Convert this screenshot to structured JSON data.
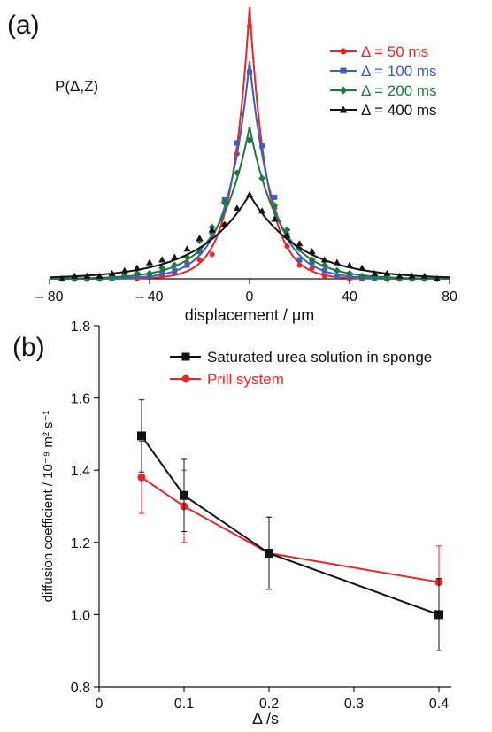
{
  "panels": {
    "a_label": "(a)",
    "b_label": "(b)"
  },
  "chart_data": [
    {
      "type": "line",
      "panel": "(a)",
      "annotation": "P(Δ,Z)",
      "xlabel": "displacement / μm",
      "ylabel": "",
      "xlim": [
        -80,
        80
      ],
      "ylim": [
        0,
        1.0
      ],
      "x_ticks": [
        -80,
        -40,
        0,
        40,
        80
      ],
      "x_tick_labels": [
        "– 80",
        "– 40",
        "0",
        "40",
        "80"
      ],
      "grid": false,
      "legend_position": "top-right",
      "series": [
        {
          "name": "Δ = 50 ms",
          "color": "#e8262b",
          "marker": "circle",
          "fit_peak": 1.0,
          "fit_decay": 7,
          "points": [
            [
              -75,
              0.0
            ],
            [
              -70,
              0.0
            ],
            [
              -65,
              0.0
            ],
            [
              -60,
              0.0
            ],
            [
              -55,
              0.0
            ],
            [
              -50,
              0.01
            ],
            [
              -45,
              0.0
            ],
            [
              -40,
              0.01
            ],
            [
              -35,
              0.01
            ],
            [
              -30,
              0.02
            ],
            [
              -25,
              0.06
            ],
            [
              -20,
              0.07
            ],
            [
              -15,
              0.09
            ],
            [
              -10,
              0.2
            ],
            [
              -5,
              0.46
            ],
            [
              0,
              0.93
            ],
            [
              5,
              0.49
            ],
            [
              10,
              0.26
            ],
            [
              15,
              0.12
            ],
            [
              20,
              0.05
            ],
            [
              25,
              0.04
            ],
            [
              30,
              0.01
            ],
            [
              35,
              0.01
            ],
            [
              40,
              0.0
            ],
            [
              45,
              0.0
            ],
            [
              50,
              0.0
            ],
            [
              55,
              0.0
            ],
            [
              60,
              0.0
            ],
            [
              65,
              0.0
            ],
            [
              70,
              0.0
            ],
            [
              75,
              0.0
            ]
          ]
        },
        {
          "name": "Δ = 100 ms",
          "color": "#3b5fc4",
          "marker": "square",
          "fit_peak": 0.8,
          "fit_decay": 9,
          "points": [
            [
              -75,
              0.0
            ],
            [
              -70,
              0.0
            ],
            [
              -65,
              0.0
            ],
            [
              -60,
              0.0
            ],
            [
              -55,
              0.0
            ],
            [
              -50,
              0.01
            ],
            [
              -45,
              0.01
            ],
            [
              -40,
              0.01
            ],
            [
              -35,
              0.02
            ],
            [
              -30,
              0.03
            ],
            [
              -25,
              0.05
            ],
            [
              -20,
              0.1
            ],
            [
              -15,
              0.17
            ],
            [
              -10,
              0.29
            ],
            [
              -5,
              0.5
            ],
            [
              0,
              0.76
            ],
            [
              5,
              0.49
            ],
            [
              10,
              0.3
            ],
            [
              15,
              0.16
            ],
            [
              20,
              0.07
            ],
            [
              25,
              0.06
            ],
            [
              30,
              0.03
            ],
            [
              35,
              0.01
            ],
            [
              40,
              0.01
            ],
            [
              45,
              0.0
            ],
            [
              50,
              0.0
            ],
            [
              55,
              0.0
            ],
            [
              60,
              0.0
            ],
            [
              65,
              0.0
            ],
            [
              70,
              0.0
            ],
            [
              75,
              0.0
            ]
          ]
        },
        {
          "name": "Δ = 200 ms",
          "color": "#1f7a3a",
          "marker": "diamond",
          "fit_peak": 0.56,
          "fit_decay": 12,
          "points": [
            [
              -75,
              0.0
            ],
            [
              -70,
              0.0
            ],
            [
              -65,
              0.0
            ],
            [
              -60,
              0.0
            ],
            [
              -55,
              0.01
            ],
            [
              -50,
              0.01
            ],
            [
              -45,
              0.02
            ],
            [
              -40,
              0.02
            ],
            [
              -35,
              0.04
            ],
            [
              -30,
              0.05
            ],
            [
              -25,
              0.08
            ],
            [
              -20,
              0.14
            ],
            [
              -15,
              0.19
            ],
            [
              -10,
              0.28
            ],
            [
              -5,
              0.39
            ],
            [
              0,
              0.51
            ],
            [
              5,
              0.37
            ],
            [
              10,
              0.27
            ],
            [
              15,
              0.18
            ],
            [
              20,
              0.11
            ],
            [
              25,
              0.07
            ],
            [
              30,
              0.05
            ],
            [
              35,
              0.03
            ],
            [
              40,
              0.02
            ],
            [
              45,
              0.01
            ],
            [
              50,
              0.01
            ],
            [
              55,
              0.0
            ],
            [
              60,
              0.0
            ],
            [
              65,
              0.0
            ],
            [
              70,
              0.0
            ],
            [
              75,
              0.0
            ]
          ]
        },
        {
          "name": "Δ = 400 ms",
          "color": "#111111",
          "marker": "triangle",
          "fit_peak": 0.31,
          "fit_decay": 20,
          "points": [
            [
              -75,
              0.0
            ],
            [
              -70,
              0.01
            ],
            [
              -65,
              0.01
            ],
            [
              -60,
              0.01
            ],
            [
              -55,
              0.02
            ],
            [
              -50,
              0.03
            ],
            [
              -45,
              0.04
            ],
            [
              -40,
              0.06
            ],
            [
              -35,
              0.07
            ],
            [
              -30,
              0.08
            ],
            [
              -25,
              0.11
            ],
            [
              -20,
              0.15
            ],
            [
              -15,
              0.18
            ],
            [
              -10,
              0.2
            ],
            [
              -5,
              0.26
            ],
            [
              0,
              0.31
            ],
            [
              5,
              0.25
            ],
            [
              10,
              0.22
            ],
            [
              15,
              0.16
            ],
            [
              20,
              0.13
            ],
            [
              25,
              0.1
            ],
            [
              30,
              0.07
            ],
            [
              35,
              0.06
            ],
            [
              40,
              0.05
            ],
            [
              45,
              0.04
            ],
            [
              50,
              0.02
            ],
            [
              55,
              0.02
            ],
            [
              60,
              0.01
            ],
            [
              65,
              0.01
            ],
            [
              70,
              0.01
            ],
            [
              75,
              0.0
            ]
          ]
        }
      ]
    },
    {
      "type": "line",
      "panel": "(b)",
      "xlabel": "Δ /s",
      "ylabel": "diffusion coefficient / 10⁻⁹ m² s⁻¹",
      "xlim": [
        0,
        0.4
      ],
      "ylim": [
        0.8,
        1.8
      ],
      "x_ticks": [
        0,
        0.1,
        0.2,
        0.3,
        0.4
      ],
      "x_tick_labels": [
        "0",
        "0.1",
        "0.2",
        "0.3",
        "0.4"
      ],
      "y_ticks": [
        0.8,
        1.0,
        1.2,
        1.4,
        1.6,
        1.8
      ],
      "y_tick_labels": [
        "0.8",
        "1.0",
        "1.2",
        "1.4",
        "1.6",
        "1.8"
      ],
      "grid": false,
      "legend_position": "top-right",
      "series": [
        {
          "name": "Saturated urea solution in sponge",
          "color": "#111111",
          "marker": "square",
          "x": [
            0.05,
            0.1,
            0.2,
            0.4
          ],
          "y": [
            1.495,
            1.33,
            1.17,
            1.0
          ],
          "err": [
            0.1,
            0.1,
            0.1,
            0.1
          ]
        },
        {
          "name": "Prill system",
          "color": "#e8262b",
          "marker": "circle",
          "x": [
            0.05,
            0.1,
            0.2,
            0.4
          ],
          "y": [
            1.38,
            1.3,
            1.17,
            1.09
          ],
          "err": [
            0.1,
            0.1,
            0.1,
            0.1
          ]
        }
      ]
    }
  ]
}
